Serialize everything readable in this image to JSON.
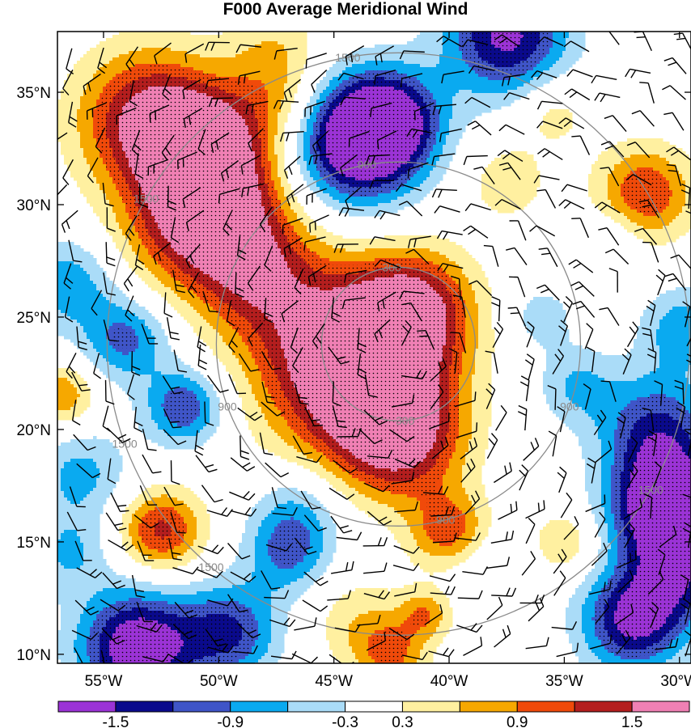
{
  "chart_data": {
    "type": "heatmap",
    "title": "F000 Average Meridional Wind",
    "x_axis": {
      "ticks": [
        -55,
        -50,
        -45,
        -40,
        -35,
        -30
      ],
      "tick_labels": [
        "55°W",
        "50°W",
        "45°W",
        "40°W",
        "35°W",
        "30°W"
      ],
      "range": [
        -57,
        -29.5
      ]
    },
    "y_axis": {
      "ticks": [
        10,
        15,
        20,
        25,
        30,
        35
      ],
      "tick_labels": [
        "10°N",
        "15°N",
        "20°N",
        "25°N",
        "30°N",
        "35°N"
      ],
      "range": [
        9.6,
        37.7
      ]
    },
    "colorbar": {
      "levels": [
        -1.8,
        -1.5,
        -1.2,
        -0.9,
        -0.6,
        -0.3,
        0.3,
        0.6,
        0.9,
        1.2,
        1.5,
        1.8
      ],
      "labeled": [
        -1.5,
        -0.9,
        -0.3,
        0.3,
        0.9,
        1.5
      ],
      "labels": [
        "-1.5",
        "-0.9",
        "-0.3",
        "0.3",
        "0.9",
        "1.5"
      ],
      "colors": [
        "#9b33d6",
        "#0a0a8c",
        "#3f55c8",
        "#0aaaf0",
        "#aadcf8",
        "#ffffff",
        "#fff0a0",
        "#f6a800",
        "#f04a0a",
        "#b41e1e",
        "#f080b4"
      ]
    },
    "range_rings": {
      "center": [
        -42.2,
        23.8
      ],
      "labels": [
        "300",
        "900",
        "1500"
      ],
      "color": "#8a8a8a"
    },
    "features": [
      {
        "kind": "max",
        "lon": -41.5,
        "lat": 25.5,
        "value": 1.8
      },
      {
        "kind": "max",
        "lon": -42.0,
        "lat": 19.5,
        "value": 1.8
      },
      {
        "kind": "max",
        "lon": -53.0,
        "lat": 33.8,
        "value": 1.8
      },
      {
        "kind": "min",
        "lon": -44.0,
        "lat": 32.8,
        "value": -1.7
      },
      {
        "kind": "min",
        "lon": -30.5,
        "lat": 16.5,
        "value": -1.7
      },
      {
        "kind": "min",
        "lon": -53.5,
        "lat": 10.3,
        "value": -1.7
      }
    ]
  }
}
